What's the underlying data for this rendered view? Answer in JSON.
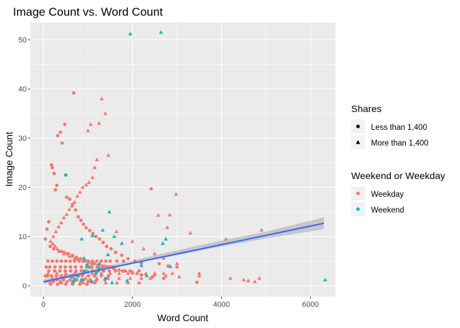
{
  "chart_data": {
    "type": "scatter",
    "title": "Image Count vs. Word Count",
    "xlabel": "Word Count",
    "ylabel": "Image Count",
    "xlim": [
      -300,
      6560
    ],
    "ylim": [
      -2.2,
      53.5
    ],
    "xticks": [
      0,
      2000,
      4000,
      6000
    ],
    "xtick_labels": [
      "0",
      "2000",
      "4000",
      "6000"
    ],
    "yticks": [
      0,
      10,
      20,
      30,
      40,
      50
    ],
    "ytick_labels": [
      "0",
      "10",
      "20",
      "30",
      "40",
      "50"
    ],
    "grid": true,
    "legend_placement": "right",
    "legends": [
      {
        "title": "Shares",
        "entries": [
          {
            "label": "Less than 1,400",
            "shape": "circle"
          },
          {
            "label": "More than 1,400",
            "shape": "triangle"
          }
        ]
      },
      {
        "title": "Weekend or Weekday",
        "entries": [
          {
            "label": "Weekday",
            "color": "#F8766D"
          },
          {
            "label": "Weekend",
            "color": "#00BFC4"
          }
        ]
      }
    ],
    "colors": {
      "Weekday": "#F8766D",
      "Weekend": "#00BFC4",
      "trend": "#3366FF",
      "band": "#999999"
    },
    "trend_line": {
      "x": [
        0,
        6300
      ],
      "y": [
        0.8,
        12.7
      ]
    },
    "trend_band": {
      "x": [
        0,
        1000,
        2000,
        3000,
        4000,
        5000,
        6300
      ],
      "lower": [
        0.3,
        2.6,
        4.5,
        6.2,
        8.0,
        9.6,
        11.5
      ],
      "upper": [
        1.3,
        3.2,
        5.1,
        7.2,
        9.2,
        11.0,
        13.9
      ]
    },
    "series": [
      {
        "group": "Weekday",
        "shares": "Less than 1,400",
        "x": [
          680,
          480,
          380,
          320,
          420,
          180,
          200,
          240,
          300,
          270,
          520,
          590,
          650,
          720,
          780,
          840,
          900,
          960,
          1040,
          1110,
          1180,
          1260,
          1340,
          1420,
          1520,
          1620,
          1760,
          1900,
          2050,
          2200,
          2420,
          2600,
          2800,
          3000,
          3450,
          120,
          80,
          40,
          150,
          230,
          350,
          460,
          560,
          650,
          740,
          830,
          930,
          1020,
          1120,
          1230,
          1340,
          1460,
          1580,
          1700,
          1820,
          2000,
          2200,
          2450,
          2700,
          100,
          200,
          300,
          400,
          500,
          600,
          700,
          800,
          900,
          1000,
          1100,
          1200,
          1300,
          1400,
          1500,
          1650,
          1800,
          60,
          140,
          260,
          380,
          490,
          610,
          720,
          850,
          970,
          1090,
          1210,
          1330,
          1450,
          1560,
          120,
          250,
          370,
          490,
          610,
          730,
          850,
          980,
          1100,
          1230,
          1350,
          1480,
          1620,
          1780,
          1950,
          2150,
          40,
          90,
          180,
          290,
          400,
          500,
          620,
          750,
          870,
          1010,
          1150,
          1300,
          1460,
          300,
          450,
          600,
          750,
          900,
          1050,
          1200,
          1380,
          220,
          380,
          530,
          680,
          840,
          1000,
          1160,
          160,
          320,
          500,
          660,
          820,
          980
        ],
        "y": [
          39.2,
          32.8,
          31.2,
          30.5,
          29.0,
          24.6,
          24.0,
          22.8,
          20.4,
          19.5,
          18.0,
          17.6,
          16.5,
          15.4,
          14.0,
          13.3,
          12.5,
          11.8,
          11.2,
          10.6,
          10.0,
          9.5,
          8.8,
          8.0,
          7.5,
          6.8,
          6.2,
          5.5,
          5.0,
          4.6,
          19.7,
          4.5,
          4.0,
          3.8,
          0.7,
          13.0,
          11.5,
          9.5,
          8.0,
          7.5,
          7.0,
          6.8,
          6.5,
          6.2,
          5.8,
          5.5,
          5.2,
          4.8,
          4.5,
          4.2,
          4.0,
          3.8,
          3.5,
          3.2,
          3.0,
          2.6,
          2.2,
          1.8,
          1.5,
          5.0,
          5.0,
          5.0,
          5.0,
          5.0,
          5.0,
          5.0,
          5.0,
          5.0,
          5.0,
          5.0,
          5.0,
          5.0,
          5.0,
          5.0,
          5.0,
          5.0,
          3.8,
          3.8,
          3.8,
          3.8,
          3.8,
          3.8,
          3.8,
          3.8,
          3.8,
          3.8,
          3.8,
          3.8,
          3.8,
          3.8,
          3.0,
          3.0,
          3.0,
          3.0,
          3.0,
          3.0,
          3.0,
          3.0,
          3.0,
          3.0,
          3.0,
          3.0,
          3.0,
          3.0,
          3.0,
          3.0,
          2.0,
          2.0,
          2.0,
          2.0,
          2.0,
          2.0,
          2.0,
          2.0,
          2.0,
          2.0,
          2.0,
          2.0,
          2.0,
          1.2,
          1.2,
          1.2,
          1.2,
          1.2,
          1.2,
          1.2,
          1.2,
          0.8,
          0.8,
          0.8,
          0.8,
          0.8,
          0.8,
          0.8,
          0.3,
          0.3,
          0.3,
          0.3,
          0.3,
          0.3
        ]
      },
      {
        "group": "Weekday",
        "shares": "More than 1,400",
        "x": [
          1310,
          1390,
          1250,
          1060,
          1000,
          1460,
          1200,
          1150,
          1100,
          1020,
          960,
          880,
          820,
          760,
          700,
          640,
          580,
          520,
          460,
          400,
          340,
          280,
          220,
          1640,
          2980,
          2840,
          2580,
          2780,
          3300,
          4100,
          4900,
          2000,
          2250,
          2500,
          2700,
          3000,
          3500,
          4200,
          4500,
          4850,
          160,
          210,
          260,
          310,
          360,
          410,
          460,
          520,
          580,
          640,
          700,
          760,
          820,
          880,
          940,
          1000,
          1080,
          1160,
          1240,
          1320,
          1400,
          1500,
          1600,
          1700,
          1850,
          2000,
          2100,
          2300,
          2500,
          2750,
          3050,
          100,
          300,
          500,
          700,
          900,
          1100,
          1300,
          1500,
          1700,
          1900,
          2100,
          2300,
          2500,
          2700,
          2900,
          3500,
          4600,
          200,
          450,
          700,
          950,
          1200,
          1450,
          1700,
          1950,
          2200,
          2400,
          150,
          400,
          650,
          900,
          1150,
          1400,
          1650,
          1900,
          2150,
          4750
        ],
        "y": [
          38.0,
          35.0,
          33.0,
          32.8,
          31.5,
          26.5,
          25.6,
          24.0,
          22.0,
          21.0,
          20.5,
          20.0,
          19.0,
          18.2,
          17.0,
          16.2,
          15.5,
          14.5,
          13.8,
          12.8,
          12.0,
          11.0,
          10.0,
          11.0,
          18.6,
          14.4,
          14.3,
          11.8,
          10.7,
          9.5,
          11.3,
          9.0,
          7.5,
          6.5,
          5.6,
          4.5,
          2.5,
          1.5,
          1.2,
          1.5,
          9.0,
          8.5,
          8.0,
          7.5,
          7.0,
          7.0,
          6.5,
          6.5,
          6.0,
          6.0,
          5.5,
          5.5,
          5.5,
          5.0,
          5.0,
          5.0,
          4.5,
          4.5,
          4.2,
          4.0,
          4.0,
          3.8,
          3.5,
          3.2,
          3.0,
          2.8,
          2.6,
          2.4,
          2.2,
          2.0,
          1.8,
          2.5,
          2.5,
          2.5,
          2.5,
          2.5,
          2.5,
          2.5,
          2.5,
          2.5,
          2.5,
          2.5,
          2.5,
          2.5,
          2.5,
          2.5,
          2.0,
          1.0,
          1.5,
          1.5,
          1.5,
          1.5,
          1.5,
          1.5,
          1.5,
          1.5,
          1.5,
          1.5,
          0.6,
          0.6,
          0.6,
          0.6,
          0.6,
          0.6,
          0.6,
          0.6,
          0.6,
          0.8
        ]
      },
      {
        "group": "Weekend",
        "shares": "Less than 1,400",
        "x": [
          500,
          980,
          1250,
          920,
          780,
          860,
          1180,
          640,
          1400,
          1080
        ],
        "y": [
          22.5,
          4.2,
          3.5,
          3.0,
          2.0,
          1.2,
          2.5,
          1.8,
          1.5,
          0.8
        ]
      },
      {
        "group": "Weekend",
        "shares": "More than 1,400",
        "x": [
          1950,
          2640,
          6330,
          1480,
          2750,
          2680,
          2850,
          1330,
          1590,
          1100,
          1450,
          2200,
          860,
          1760,
          910,
          1030,
          1260,
          700,
          1880,
          2320,
          660,
          1540
        ],
        "y": [
          51.2,
          51.5,
          1.2,
          15.0,
          9.5,
          8.6,
          3.9,
          11.3,
          10.0,
          10.2,
          6.3,
          4.1,
          9.5,
          8.6,
          5.6,
          3.8,
          4.5,
          1.2,
          1.0,
          2.0,
          0.9,
          0.6
        ]
      }
    ]
  }
}
